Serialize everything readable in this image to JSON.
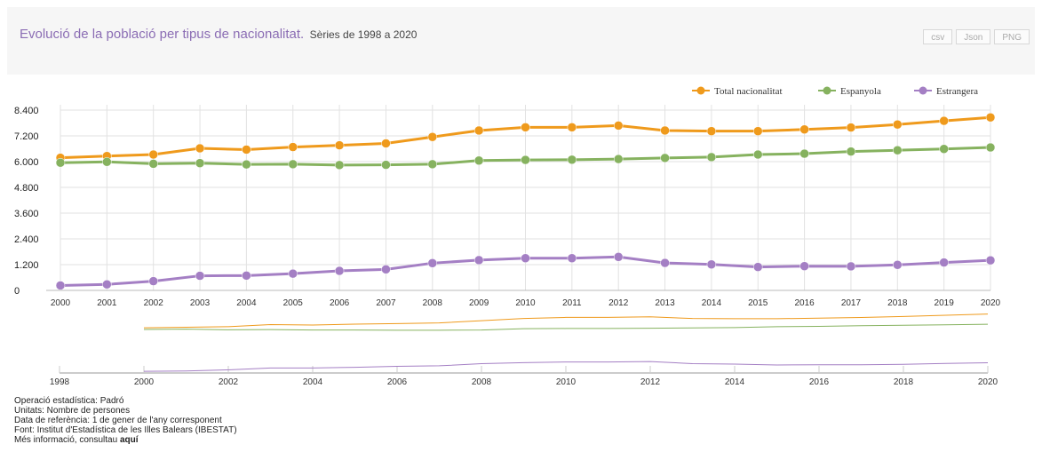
{
  "header": {
    "title": "Evolució de la població per tipus de nacionalitat.",
    "subtitle": "Sèries de 1998 a 2020",
    "buttons": [
      "csv",
      "Json",
      "PNG"
    ]
  },
  "colors": {
    "total": "#ef9a1c",
    "espanyola": "#86b25f",
    "estrangera": "#a47fc4"
  },
  "chart_data": {
    "type": "line",
    "x": [
      2000,
      2001,
      2002,
      2003,
      2004,
      2005,
      2006,
      2007,
      2008,
      2009,
      2010,
      2011,
      2012,
      2013,
      2014,
      2015,
      2016,
      2017,
      2018,
      2019,
      2020
    ],
    "series": [
      {
        "name": "Total nacionalitat",
        "values": [
          6180,
          6260,
          6330,
          6620,
          6560,
          6680,
          6760,
          6850,
          7150,
          7450,
          7600,
          7600,
          7680,
          7450,
          7420,
          7420,
          7500,
          7590,
          7730,
          7900,
          8060
        ]
      },
      {
        "name": "Espanyola",
        "values": [
          5950,
          5990,
          5900,
          5930,
          5870,
          5880,
          5840,
          5850,
          5880,
          6050,
          6080,
          6090,
          6120,
          6170,
          6210,
          6330,
          6370,
          6470,
          6530,
          6590,
          6660
        ]
      },
      {
        "name": "Estrangera",
        "values": [
          230,
          280,
          430,
          680,
          690,
          780,
          910,
          980,
          1270,
          1410,
          1500,
          1500,
          1560,
          1280,
          1210,
          1090,
          1130,
          1120,
          1190,
          1300,
          1400
        ]
      }
    ],
    "ylim": [
      0,
      8400
    ],
    "yticks": [
      "0",
      "1.200",
      "2.400",
      "3.600",
      "4.800",
      "6.000",
      "7.200",
      "8.400"
    ],
    "legend_position": "top-right",
    "grid": true,
    "navigator": {
      "range": [
        1998,
        2020
      ],
      "ticks": [
        "1998",
        "2000",
        "2002",
        "2004",
        "2006",
        "2008",
        "2010",
        "2012",
        "2014",
        "2016",
        "2018",
        "2020"
      ]
    }
  },
  "footer": {
    "line1": "Operació estadística: Padró",
    "line2": "Unitats: Nombre de persones",
    "line3": "Data de referència: 1 de gener de l'any corresponent",
    "line4": "Font: Institut d'Estadística de les Illes Balears (IBESTAT)",
    "line5_prefix": "Més informació, consultau",
    "line5_link": "aquí"
  }
}
